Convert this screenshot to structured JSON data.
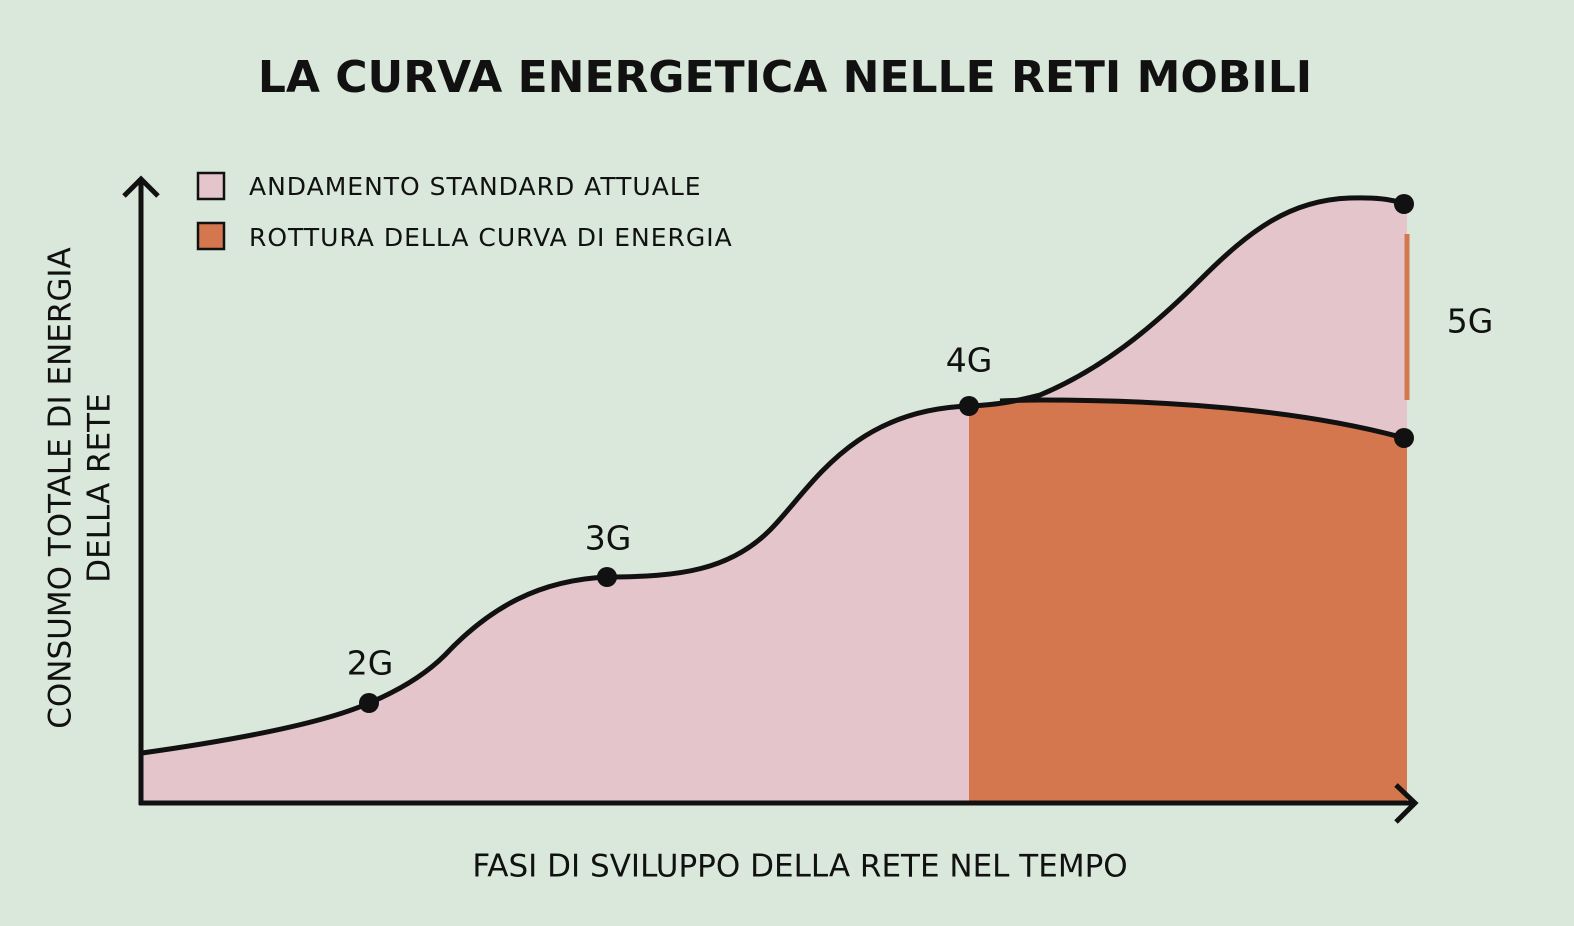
{
  "title": "LA CURVA ENERGETICA NELLE RETI MOBILI",
  "legend": [
    "ANDAMENTO STANDARD ATTUALE",
    "ROTTURA DELLA CURVA DI ENERGIA"
  ],
  "y_axis_label": [
    "CONSUMO TOTALE DI ENERGIA",
    "DELLA RETE"
  ],
  "x_axis_label": "FASI DI SVILUPPO DELLA RETE NEL TEMPO",
  "stages": [
    "2G",
    "3G",
    "4G",
    "5G"
  ]
}
